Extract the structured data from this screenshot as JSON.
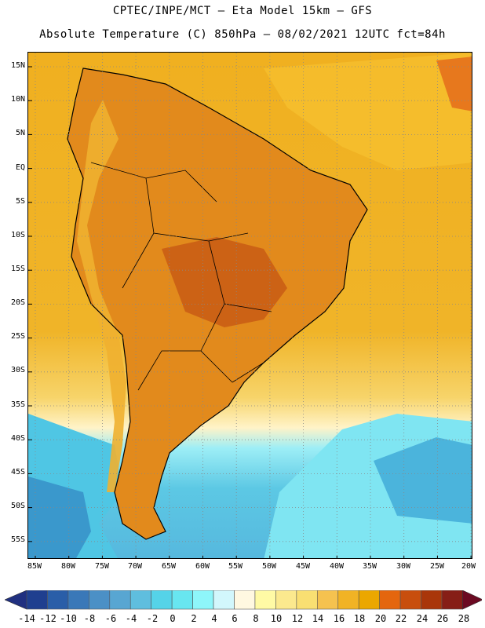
{
  "title": {
    "line1": "CPTEC/INPE/MCT –  Eta Model 15km – GFS",
    "line2": "Absolute Temperature (C) 850hPa – 08/02/2021 12UTC fct=84h"
  },
  "map": {
    "lat_labels": [
      "15N",
      "10N",
      "5N",
      "EQ",
      "5S",
      "10S",
      "15S",
      "20S",
      "25S",
      "30S",
      "35S",
      "40S",
      "45S",
      "50S",
      "55S"
    ],
    "lon_labels": [
      "85W",
      "80W",
      "75W",
      "70W",
      "65W",
      "60W",
      "55W",
      "50W",
      "45W",
      "40W",
      "35W",
      "30W",
      "25W",
      "20W"
    ],
    "lat_range": [
      -59,
      16
    ],
    "lon_range": [
      -86,
      -20
    ],
    "grid": "dotted"
  },
  "legend": {
    "labels": [
      "-14",
      "-12",
      "-10",
      "-8",
      "-6",
      "-4",
      "-2",
      "0",
      "2",
      "4",
      "6",
      "8",
      "10",
      "12",
      "14",
      "16",
      "18",
      "20",
      "22",
      "24",
      "26",
      "28"
    ],
    "colors": [
      "#1f3f8f",
      "#2a5ea8",
      "#3a78b8",
      "#4b90c6",
      "#58a6d2",
      "#5fbede",
      "#55d3e8",
      "#68e6f0",
      "#8ef6fa",
      "#d2f7fc",
      "#fff8e1",
      "#fffaa5",
      "#fbe98e",
      "#f9df72",
      "#f5c24f",
      "#f1b325",
      "#eba700",
      "#e4660e",
      "#c84e0d",
      "#a9360a",
      "#861e16"
    ],
    "under_color": "#203080",
    "over_color": "#6b0a22"
  }
}
